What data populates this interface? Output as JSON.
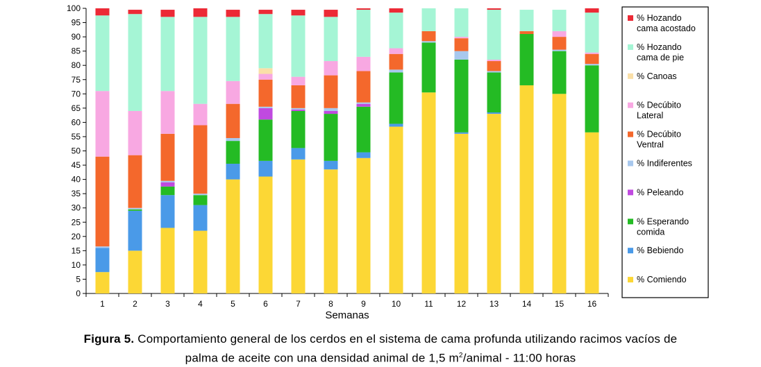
{
  "caption": {
    "label": "Figura 5.",
    "text_line1": "Comportamiento general de los cerdos en el sistema de cama profunda utilizando racimos vacíos de",
    "text_line2_pre": "palma de aceite con una densidad animal de 1,5 m",
    "text_line2_sup": "2",
    "text_line2_post": "/animal - 11:00 horas"
  },
  "chart_data": {
    "type": "bar",
    "stacked": true,
    "xlabel": "Semanas",
    "ylabel": "",
    "ylim": [
      0,
      100
    ],
    "yticks": [
      0,
      5,
      10,
      15,
      20,
      25,
      30,
      35,
      40,
      45,
      50,
      55,
      60,
      65,
      70,
      75,
      80,
      85,
      90,
      95,
      100
    ],
    "categories": [
      "1",
      "2",
      "3",
      "4",
      "5",
      "6",
      "7",
      "8",
      "9",
      "10",
      "11",
      "12",
      "13",
      "14",
      "15",
      "16"
    ],
    "legend_position": "right",
    "series": [
      {
        "name": "% Comiendo",
        "color": "#fcd735",
        "values": [
          7.5,
          15,
          23,
          22,
          40,
          41,
          47,
          43.5,
          47.5,
          58.5,
          70.5,
          56,
          63,
          73,
          70,
          56.5
        ]
      },
      {
        "name": "% Bebiendo",
        "color": "#4a9ae8",
        "values": [
          8.5,
          14,
          11.5,
          9,
          5.5,
          5.5,
          4,
          3,
          2,
          1,
          0,
          0.5,
          0.5,
          0,
          0,
          0
        ]
      },
      {
        "name": "% Esperando comida",
        "color": "#24bb24",
        "values": [
          0,
          0.5,
          3,
          3.5,
          8,
          14.5,
          13,
          16.5,
          16,
          18,
          17.5,
          25.5,
          14,
          18,
          15,
          23.5
        ]
      },
      {
        "name": "% Peleando",
        "color": "#c04ae0",
        "values": [
          0,
          0,
          1.5,
          0,
          0,
          4,
          0.5,
          1,
          1,
          0,
          0,
          0,
          0,
          0,
          0,
          0
        ]
      },
      {
        "name": "% Indiferentes",
        "color": "#a8c8ee",
        "values": [
          0.5,
          0.5,
          0.5,
          0.5,
          1,
          0.5,
          0.5,
          1,
          0.5,
          1,
          0.5,
          3,
          0.5,
          0,
          0.5,
          0.5
        ]
      },
      {
        "name": "% Decúbito Ventral",
        "color": "#f4682c",
        "values": [
          31.5,
          18.5,
          16.5,
          24,
          12,
          9.5,
          8,
          11.5,
          11,
          5.5,
          3.5,
          4.5,
          3.5,
          1,
          4.5,
          3.5
        ]
      },
      {
        "name": "% Decúbito Lateral",
        "color": "#f8a8e2",
        "values": [
          23,
          15.5,
          15,
          7.5,
          8,
          2,
          3,
          5,
          5,
          2,
          0,
          0.5,
          0.5,
          0,
          2,
          0.5
        ]
      },
      {
        "name": "% Canoas",
        "color": "#fadfa8",
        "values": [
          0,
          0,
          0,
          0,
          0,
          2,
          0,
          0,
          0,
          0,
          0,
          0,
          0,
          0,
          0,
          0
        ]
      },
      {
        "name": "% Hozando cama de pie",
        "color": "#a5f5d5",
        "values": [
          26.5,
          34,
          26,
          30.5,
          22.5,
          19,
          21.5,
          15.5,
          16.5,
          12.5,
          8,
          10,
          17.5,
          7.5,
          7.5,
          14
        ]
      },
      {
        "name": "% Hozando cama acostado",
        "color": "#ec2a36",
        "values": [
          2.5,
          1.5,
          2.5,
          3,
          2.5,
          1.5,
          2,
          2.5,
          0.5,
          1.5,
          0,
          0,
          0.5,
          0,
          0,
          1.5
        ]
      }
    ]
  }
}
